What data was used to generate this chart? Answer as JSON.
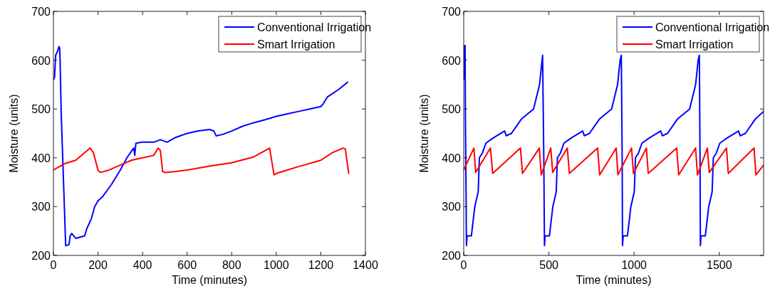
{
  "chart_data": [
    {
      "type": "line",
      "xlabel": "Time (minutes)",
      "ylabel": "Moisture (units)",
      "xlim": [
        0,
        1400
      ],
      "xticks": [
        0,
        200,
        400,
        600,
        800,
        1000,
        1200,
        1400
      ],
      "ylim": [
        200,
        700
      ],
      "yticks": [
        200,
        300,
        400,
        500,
        600,
        700
      ],
      "legend": "top right",
      "grid": false,
      "line_style": "solid",
      "marker": "none",
      "series": [
        {
          "name": "Conventional Irrigation",
          "color": "#0000ff",
          "x": [
            0,
            5,
            10,
            20,
            25,
            28,
            30,
            35,
            55,
            70,
            75,
            82,
            100,
            140,
            150,
            170,
            185,
            200,
            220,
            260,
            300,
            330,
            360,
            365,
            370,
            400,
            450,
            480,
            510,
            550,
            600,
            650,
            700,
            720,
            730,
            760,
            800,
            850,
            900,
            950,
            1000,
            1050,
            1100,
            1150,
            1200,
            1210,
            1230,
            1280,
            1320
          ],
          "values": [
            560,
            565,
            610,
            620,
            628,
            625,
            600,
            490,
            220,
            222,
            240,
            245,
            235,
            240,
            255,
            275,
            300,
            312,
            320,
            345,
            375,
            400,
            420,
            405,
            430,
            432,
            432,
            437,
            432,
            442,
            450,
            455,
            458,
            455,
            445,
            448,
            455,
            465,
            472,
            478,
            485,
            490,
            495,
            500,
            505,
            510,
            525,
            540,
            555
          ]
        },
        {
          "name": "Smart Irrigation",
          "color": "#ff0000",
          "x": [
            0,
            50,
            100,
            165,
            180,
            200,
            210,
            250,
            300,
            350,
            400,
            450,
            470,
            480,
            490,
            500,
            550,
            600,
            700,
            800,
            900,
            970,
            990,
            1000,
            1050,
            1100,
            1200,
            1250,
            1300,
            1310,
            1325
          ],
          "values": [
            375,
            388,
            395,
            420,
            410,
            375,
            370,
            375,
            385,
            395,
            400,
            405,
            420,
            415,
            372,
            370,
            372,
            375,
            383,
            390,
            402,
            420,
            365,
            368,
            375,
            382,
            395,
            410,
            420,
            418,
            368
          ]
        }
      ]
    },
    {
      "type": "line",
      "xlabel": "Time (minutes)",
      "ylabel": "Moisture (units)",
      "xlim": [
        0,
        1760
      ],
      "xticks": [
        0,
        500,
        1000,
        1500
      ],
      "ylim": [
        200,
        700
      ],
      "yticks": [
        200,
        300,
        400,
        500,
        600,
        700
      ],
      "legend": "top right",
      "grid": false,
      "line_style": "solid",
      "marker": "none",
      "series": [
        {
          "name": "Conventional Irrigation",
          "color": "#0000ff",
          "x": [
            0,
            2,
            8,
            10,
            14,
            16,
            20,
            45,
            65,
            85,
            92,
            110,
            130,
            170,
            240,
            250,
            280,
            340,
            410,
            445,
            460,
            463,
            470,
            474,
            478,
            503,
            523,
            543,
            550,
            568,
            588,
            628,
            698,
            708,
            738,
            798,
            868,
            903,
            918,
            925,
            930,
            932,
            936,
            961,
            981,
            1001,
            1008,
            1026,
            1046,
            1086,
            1156,
            1166,
            1196,
            1256,
            1326,
            1361,
            1376,
            1383,
            1387,
            1389,
            1393,
            1418,
            1438,
            1458,
            1465,
            1483,
            1503,
            1543,
            1613,
            1623,
            1653,
            1713,
            1760
          ],
          "values": [
            560,
            630,
            630,
            480,
            320,
            220,
            240,
            240,
            300,
            330,
            400,
            410,
            430,
            440,
            455,
            445,
            450,
            480,
            500,
            550,
            600,
            610,
            400,
            220,
            240,
            240,
            300,
            330,
            400,
            410,
            430,
            440,
            455,
            445,
            450,
            480,
            500,
            550,
            600,
            610,
            400,
            220,
            240,
            240,
            300,
            330,
            400,
            410,
            430,
            440,
            455,
            445,
            450,
            480,
            500,
            550,
            600,
            610,
            400,
            220,
            240,
            240,
            300,
            330,
            400,
            410,
            430,
            440,
            455,
            445,
            450,
            480,
            495
          ]
        },
        {
          "name": "Smart Irrigation",
          "color": "#ff0000",
          "x": [
            0,
            60,
            70,
            157,
            170,
            333,
            345,
            444,
            455,
            511,
            522,
            608,
            620,
            786,
            798,
            895,
            905,
            985,
            996,
            1072,
            1083,
            1250,
            1262,
            1361,
            1372,
            1430,
            1441,
            1542,
            1553,
            1704,
            1715,
            1760
          ],
          "values": [
            375,
            420,
            370,
            420,
            368,
            420,
            368,
            420,
            365,
            420,
            370,
            420,
            368,
            420,
            365,
            420,
            365,
            420,
            368,
            420,
            368,
            420,
            365,
            420,
            365,
            420,
            370,
            420,
            368,
            420,
            365,
            385
          ]
        }
      ]
    }
  ]
}
